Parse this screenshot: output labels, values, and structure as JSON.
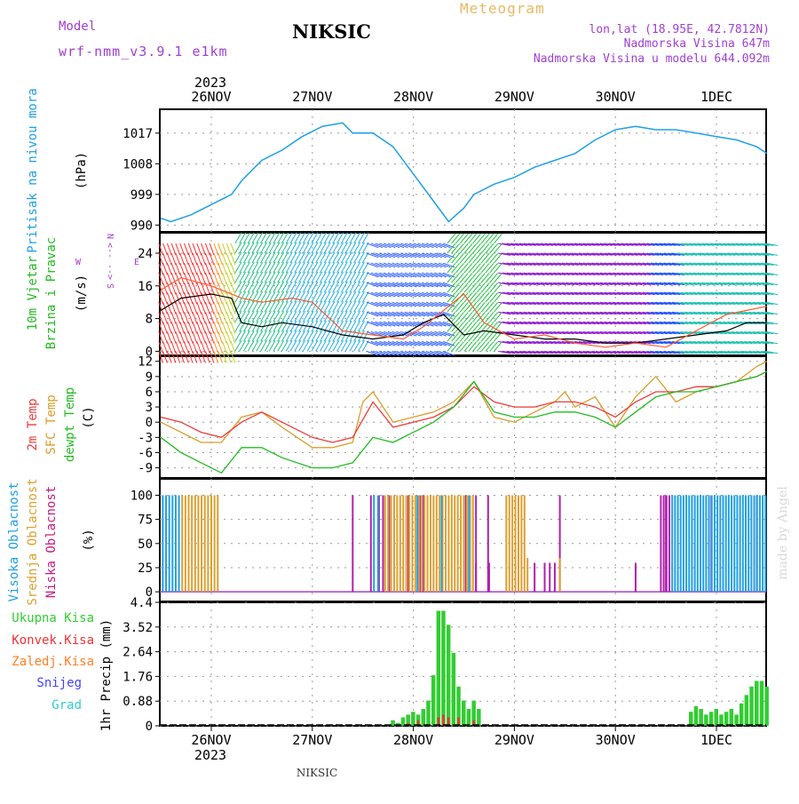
{
  "header": {
    "model_label": "Model",
    "model_name": "wrf-nmm_v3.9.1 e1km",
    "station": "NIKSIC",
    "product": "Meteogram",
    "lonlat": "lon,lat (18.95E, 42.7812N)",
    "elevation": "Nadmorska Visina 647m",
    "model_elevation": "Nadmorska Visina u modelu 644.092m",
    "footer_station": "NIKSIC",
    "watermark": "made by Angel"
  },
  "time_axis": {
    "year": "2023",
    "labels": [
      "26NOV",
      "27NOV",
      "28NOV",
      "29NOV",
      "30NOV",
      "1DEC"
    ]
  },
  "colors": {
    "pressure": "#1ea0e6",
    "t2m": "#ee3b3b",
    "sfc": "#dc9b2a",
    "dewpt": "#22bb22",
    "cloud_high": "#22a0e0",
    "cloud_mid": "#dca030",
    "cloud_low": "#b020b0",
    "precip_total": "#33cc33",
    "precip_conv": "#ee3333",
    "precip_frz": "#ff7f24",
    "snow": "#4444ff",
    "hail": "#33cccc",
    "purple": "#a040d0",
    "gold": "#e8b860"
  },
  "chart_data": [
    {
      "type": "line",
      "panel": "pressure",
      "ylabel": "Pritisak na nivou mora",
      "unit": "(hPa)",
      "yticks": [
        "990",
        "999",
        "1008",
        "1017"
      ],
      "ylim": [
        988,
        1024
      ],
      "series": [
        {
          "x": [
            -0.5,
            -0.4,
            -0.2,
            0,
            0.2,
            0.3,
            0.5,
            0.7,
            0.9,
            1.1,
            1.3,
            1.4,
            1.6,
            1.8,
            2.0,
            2.2,
            2.35,
            2.5,
            2.6,
            2.8,
            3.0,
            3.2,
            3.4,
            3.6,
            3.8,
            4.0,
            4.2,
            4.4,
            4.6,
            4.8,
            5.0,
            5.2,
            5.4,
            5.5
          ],
          "values": [
            992,
            991,
            993,
            996,
            999,
            1003,
            1009,
            1012,
            1016,
            1019,
            1020,
            1017,
            1017,
            1013,
            1005,
            997,
            991,
            995,
            999,
            1002,
            1004,
            1007,
            1009,
            1011,
            1015,
            1018,
            1019,
            1018,
            1018,
            1017,
            1016,
            1015,
            1013,
            1011
          ]
        }
      ]
    },
    {
      "type": "line",
      "panel": "wind",
      "ylabel": "10m Vjetar Brzina i Pravac",
      "unit": "(m/s)",
      "legend": [
        "N",
        "W",
        "E",
        "S",
        "<--",
        "-->"
      ],
      "yticks": [
        "0",
        "8",
        "16",
        "24"
      ],
      "ylim": [
        -1,
        29
      ],
      "series": [
        {
          "x": [
            -0.5,
            -0.3,
            0,
            0.2,
            0.3,
            0.5,
            0.7,
            1.0,
            1.3,
            1.6,
            1.9,
            2.1,
            2.3,
            2.5,
            2.7,
            3.0,
            3.3,
            3.6,
            3.9,
            4.2,
            4.5,
            4.8,
            5.1,
            5.3,
            5.5
          ],
          "values": [
            10,
            13,
            14,
            13,
            7,
            6,
            7,
            6,
            4,
            3,
            4,
            7,
            9,
            4,
            5,
            4,
            3,
            3,
            2,
            2,
            3,
            4,
            5,
            7,
            7
          ]
        },
        {
          "x": [
            -0.5,
            -0.3,
            0,
            0.3,
            0.5,
            0.8,
            1.0,
            1.3,
            1.6,
            1.9,
            2.1,
            2.3,
            2.5,
            2.7,
            3.0,
            3.3,
            3.6,
            3.9,
            4.2,
            4.5,
            4.8,
            5.1,
            5.3,
            5.5
          ],
          "values": [
            15,
            18,
            16,
            13,
            12,
            13,
            12,
            5,
            4,
            3,
            6,
            10,
            14,
            7,
            3,
            4,
            2,
            1,
            2,
            1,
            5,
            9,
            10,
            11
          ]
        }
      ]
    },
    {
      "type": "line",
      "panel": "temperature",
      "ylabel": [
        "2m Temp",
        "SFC Temp",
        "dewpt Temp"
      ],
      "unit": "(C)",
      "yticks": [
        "-9",
        "-6",
        "-3",
        "0",
        "3",
        "6",
        "9",
        "12"
      ],
      "ylim": [
        -11,
        13
      ],
      "series": [
        {
          "name": "2m Temp",
          "x": [
            -0.5,
            -0.3,
            -0.1,
            0.1,
            0.3,
            0.5,
            0.7,
            1.0,
            1.2,
            1.4,
            1.6,
            1.8,
            2.0,
            2.2,
            2.4,
            2.6,
            2.8,
            3.0,
            3.2,
            3.4,
            3.6,
            3.8,
            4.0,
            4.2,
            4.4,
            4.6,
            4.8,
            5.0,
            5.2,
            5.4,
            5.5
          ],
          "values": [
            1,
            0,
            -2,
            -3,
            0,
            2,
            0,
            -3,
            -4,
            -3,
            4,
            -1,
            0,
            1,
            3,
            7,
            4,
            3,
            3,
            4,
            4,
            3,
            1,
            4,
            6,
            6,
            7,
            7,
            8,
            9,
            10
          ]
        },
        {
          "name": "SFC Temp",
          "x": [
            -0.5,
            -0.3,
            -0.1,
            0.1,
            0.3,
            0.5,
            0.7,
            1.0,
            1.2,
            1.4,
            1.5,
            1.6,
            1.8,
            2.0,
            2.2,
            2.4,
            2.6,
            2.8,
            3.0,
            3.2,
            3.4,
            3.5,
            3.6,
            3.8,
            4.0,
            4.2,
            4.4,
            4.6,
            4.8,
            5.0,
            5.2,
            5.4,
            5.5
          ],
          "values": [
            0,
            -2,
            -4,
            -4,
            1,
            2,
            -1,
            -5,
            -5,
            -4,
            4,
            6,
            0,
            1,
            2,
            4,
            8,
            1,
            0,
            2,
            4,
            6,
            3,
            5,
            -1,
            5,
            9,
            4,
            6,
            7,
            8,
            11,
            12
          ]
        },
        {
          "name": "dewpt Temp",
          "x": [
            -0.5,
            -0.3,
            -0.1,
            0.1,
            0.3,
            0.5,
            0.7,
            1.0,
            1.2,
            1.4,
            1.6,
            1.8,
            2.0,
            2.2,
            2.4,
            2.6,
            2.8,
            3.0,
            3.2,
            3.4,
            3.6,
            3.8,
            4.0,
            4.2,
            4.4,
            4.6,
            4.8,
            5.0,
            5.2,
            5.4,
            5.5
          ],
          "values": [
            -3,
            -6,
            -8,
            -10,
            -5,
            -5,
            -7,
            -9,
            -9,
            -8,
            -3,
            -4,
            -2,
            0,
            3,
            8,
            2,
            1,
            1,
            2,
            2,
            1,
            -1,
            2,
            5,
            6,
            6,
            7,
            8,
            9,
            10
          ]
        }
      ]
    },
    {
      "type": "bar",
      "panel": "clouds",
      "ylabel": [
        "Visoka Oblacnost",
        "Srednja Oblacnost",
        "Niska Oblacnost"
      ],
      "unit": "(%)",
      "yticks": [
        "0",
        "25",
        "50",
        "75",
        "100"
      ],
      "ylim": [
        0,
        100
      ]
    },
    {
      "type": "bar",
      "panel": "precip",
      "ylabel": "1hr Precip (mm)",
      "legend": [
        "Ukupna Kisa",
        "Konvek.Kisa",
        "Zaledj.Kisa",
        "Snijeg",
        "Grad"
      ],
      "yticks": [
        "0",
        "0.88",
        "1.76",
        "2.64",
        "3.52",
        "4.4"
      ],
      "ylim": [
        0,
        4.4
      ],
      "series": [
        {
          "name": "Ukupna Kisa",
          "x": [
            1.8,
            1.85,
            1.9,
            1.95,
            2.0,
            2.05,
            2.1,
            2.15,
            2.2,
            2.25,
            2.3,
            2.35,
            2.4,
            2.45,
            2.5,
            2.55,
            2.6,
            2.65,
            4.75,
            4.8,
            4.85,
            4.9,
            4.95,
            5.0,
            5.05,
            5.1,
            5.15,
            5.2,
            5.25,
            5.3,
            5.35,
            5.4,
            5.45,
            5.5
          ],
          "values": [
            0.2,
            0.1,
            0.3,
            0.4,
            0.5,
            0.4,
            0.6,
            0.9,
            1.8,
            4.1,
            4.1,
            3.6,
            2.6,
            1.4,
            0.9,
            0.6,
            0.9,
            0.6,
            0.5,
            0.7,
            0.6,
            0.4,
            0.5,
            0.6,
            0.4,
            0.5,
            0.6,
            0.4,
            0.8,
            1.1,
            1.4,
            1.6,
            1.6,
            1.4
          ]
        },
        {
          "name": "Konvek.Kisa",
          "x": [
            1.95,
            2.05,
            2.25,
            2.3,
            2.35,
            2.45,
            2.6
          ],
          "values": [
            0.1,
            0.2,
            0.3,
            0.4,
            0.3,
            0.3,
            0.2
          ]
        }
      ]
    }
  ]
}
